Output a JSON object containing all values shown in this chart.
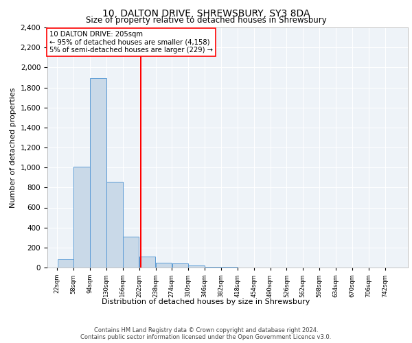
{
  "title": "10, DALTON DRIVE, SHREWSBURY, SY3 8DA",
  "subtitle": "Size of property relative to detached houses in Shrewsbury",
  "xlabel": "Distribution of detached houses by size in Shrewsbury",
  "ylabel": "Number of detached properties",
  "bin_edges": [
    22,
    58,
    94,
    130,
    166,
    202,
    238,
    274,
    310,
    346,
    382,
    418,
    454,
    490,
    526,
    562,
    598,
    634,
    670,
    706,
    742
  ],
  "bin_counts": [
    80,
    1010,
    1890,
    860,
    310,
    110,
    50,
    40,
    20,
    5,
    5,
    3,
    2,
    2,
    1,
    1,
    1,
    1,
    0,
    0
  ],
  "bar_color": "#c9d9e8",
  "bar_edge_color": "#5b9bd5",
  "property_size": 205,
  "vline_color": "red",
  "annotation_text": "10 DALTON DRIVE: 205sqm\n← 95% of detached houses are smaller (4,158)\n5% of semi-detached houses are larger (229) →",
  "annotation_box_color": "white",
  "annotation_box_edge": "red",
  "ylim": [
    0,
    2400
  ],
  "yticks": [
    0,
    200,
    400,
    600,
    800,
    1000,
    1200,
    1400,
    1600,
    1800,
    2000,
    2200,
    2400
  ],
  "tick_labels": [
    "22sqm",
    "58sqm",
    "94sqm",
    "130sqm",
    "166sqm",
    "202sqm",
    "238sqm",
    "274sqm",
    "310sqm",
    "346sqm",
    "382sqm",
    "418sqm",
    "454sqm",
    "490sqm",
    "526sqm",
    "562sqm",
    "598sqm",
    "634sqm",
    "670sqm",
    "706sqm",
    "742sqm"
  ],
  "footer_line1": "Contains HM Land Registry data © Crown copyright and database right 2024.",
  "footer_line2": "Contains public sector information licensed under the Open Government Licence v3.0.",
  "background_color": "#eef3f8",
  "grid_color": "white"
}
